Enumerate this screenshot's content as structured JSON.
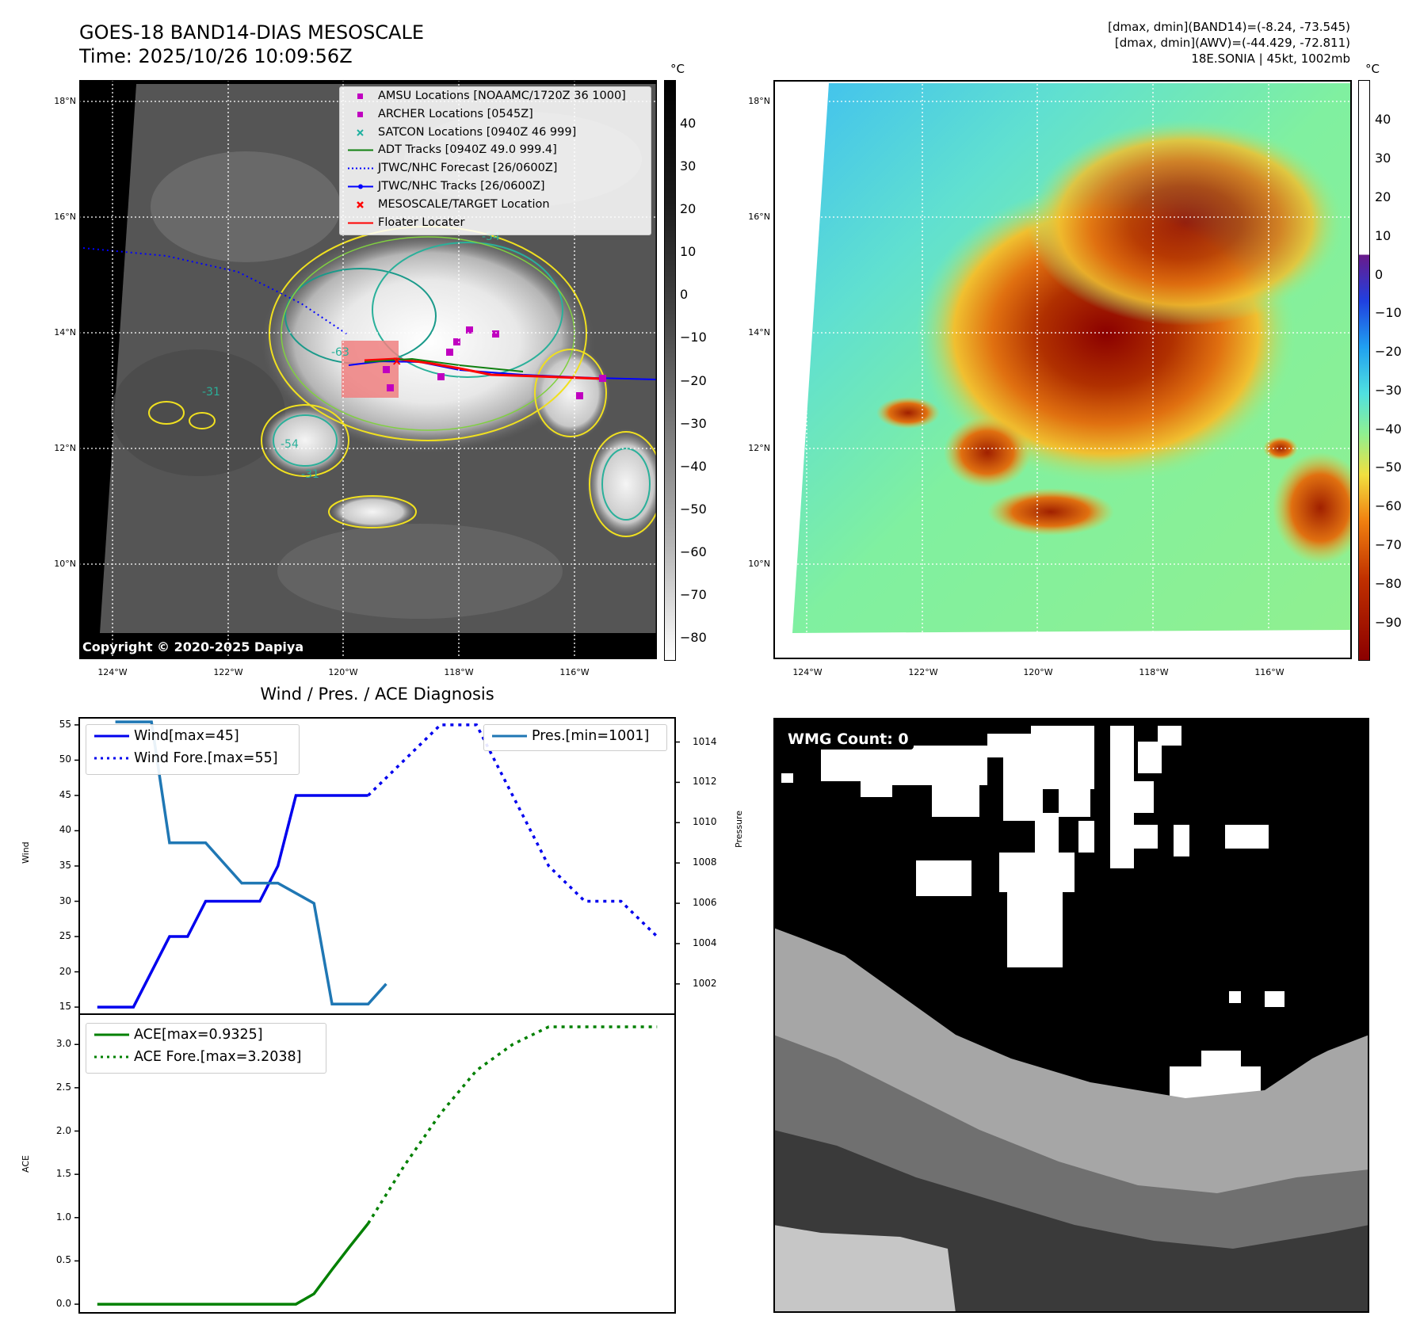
{
  "header": {
    "title_line1": "GOES-18 BAND14-DIAS MESOSCALE",
    "title_line2": "Time: 2025/10/26 10:09:56Z",
    "right_line1": "[dmax, dmin](BAND14)=(-8.24, -73.545)",
    "right_line2": "[dmax, dmin](AWV)=(-44.429, -72.811)",
    "right_line3": "18E.SONIA | 45kt, 1002mb"
  },
  "map_axes": {
    "lat_labels": [
      "18°N",
      "16°N",
      "14°N",
      "12°N",
      "10°N"
    ],
    "lon_labels": [
      "124°W",
      "122°W",
      "120°W",
      "118°W",
      "116°W"
    ]
  },
  "ir_colorbar": {
    "unit": "°C",
    "ticks": [
      "40",
      "30",
      "20",
      "10",
      "0",
      "−10",
      "−20",
      "−30",
      "−40",
      "−50",
      "−60",
      "−70",
      "−80"
    ]
  },
  "wv_colorbar": {
    "unit": "°C",
    "ticks": [
      "40",
      "30",
      "20",
      "10",
      "0",
      "−10",
      "−20",
      "−30",
      "−40",
      "−50",
      "−60",
      "−70",
      "−80",
      "−90"
    ]
  },
  "ir_legend": [
    {
      "label": "AMSU Locations [NOAAMC/1720Z 36 1000]",
      "symbol": "square",
      "color": "#c000c0"
    },
    {
      "label": "ARCHER Locations [0545Z]",
      "symbol": "square",
      "color": "#c000c0"
    },
    {
      "label": "SATCON Locations [0940Z 46 999]",
      "symbol": "x",
      "color": "#20b0a0"
    },
    {
      "label": "ADT Tracks [0940Z 49.0 999.4]",
      "symbol": "line",
      "color": "#108010"
    },
    {
      "label": "JTWC/NHC Forecast [26/0600Z]",
      "symbol": "dotted",
      "color": "#0000ff"
    },
    {
      "label": "JTWC/NHC Tracks [26/0600Z]",
      "symbol": "line-dot",
      "color": "#0000ff"
    },
    {
      "label": "MESOSCALE/TARGET Location",
      "symbol": "x",
      "color": "#ff0000"
    },
    {
      "label": "Floater Locater",
      "symbol": "line",
      "color": "#ff0000"
    }
  ],
  "contour_labels": [
    "-54",
    "-31",
    "-54",
    "-31",
    "-63"
  ],
  "copyright": "Copyright © 2020-2025 Dapiya",
  "diag_title": "Wind / Pres. / ACE Diagnosis",
  "wind_axis": {
    "ylabel": "Wind",
    "ticks": [
      "55",
      "50",
      "45",
      "40",
      "35",
      "30",
      "25",
      "20",
      "15"
    ]
  },
  "pres_axis": {
    "ylabel": "Pressure",
    "ticks": [
      "1014",
      "1012",
      "1010",
      "1008",
      "1006",
      "1004",
      "1002"
    ]
  },
  "ace_axis": {
    "ylabel": "ACE",
    "ticks": [
      "3.0",
      "2.5",
      "2.0",
      "1.5",
      "1.0",
      "0.5",
      "0.0"
    ]
  },
  "wind_legend": [
    "Wind[max=45]",
    "Wind Fore.[max=55]"
  ],
  "pres_legend": [
    "Pres.[min=1001]"
  ],
  "ace_legend": [
    "ACE[max=0.9325]",
    "ACE Fore.[max=3.2038]"
  ],
  "wmg_label": "WMG Count: 0",
  "chart_data": [
    {
      "type": "line",
      "title": "Wind / Pres. / ACE Diagnosis",
      "ylabel": "Wind",
      "ylim": [
        14,
        56
      ],
      "series": [
        {
          "name": "Wind[max=45]",
          "style": "solid",
          "color": "#0000ee",
          "x": [
            0,
            1,
            2,
            3,
            4,
            5,
            6,
            7,
            8,
            9,
            10,
            11,
            12,
            13,
            14,
            15
          ],
          "y": [
            15,
            15,
            15,
            20,
            25,
            25,
            30,
            30,
            30,
            30,
            35,
            45,
            45,
            45,
            45,
            45
          ]
        },
        {
          "name": "Wind Fore.[max=55]",
          "style": "dotted",
          "color": "#0000ee",
          "x": [
            15,
            17,
            19,
            21,
            23,
            25,
            27,
            29,
            31
          ],
          "y": [
            45,
            50,
            55,
            55,
            45,
            35,
            30,
            30,
            25
          ]
        }
      ]
    },
    {
      "type": "line",
      "ylabel": "Pressure",
      "ylim": [
        1000.5,
        1015.2
      ],
      "series": [
        {
          "name": "Pres.[min=1001]",
          "style": "solid",
          "color": "#1f77b4",
          "x": [
            1,
            3,
            4,
            6,
            8,
            10,
            12,
            13,
            14,
            15,
            16
          ],
          "y": [
            1015,
            1015,
            1009,
            1009,
            1007,
            1007,
            1006,
            1001,
            1001,
            1001,
            1002
          ]
        }
      ]
    },
    {
      "type": "line",
      "ylabel": "ACE",
      "ylim": [
        -0.1,
        3.35
      ],
      "series": [
        {
          "name": "ACE[max=0.9325]",
          "style": "solid",
          "color": "#008000",
          "x": [
            0,
            11,
            12,
            13,
            14,
            15
          ],
          "y": [
            0.0,
            0.0,
            0.12,
            0.4,
            0.67,
            0.9325
          ]
        },
        {
          "name": "ACE Fore.[max=3.2038]",
          "style": "dotted",
          "color": "#008000",
          "x": [
            15,
            17,
            19,
            21,
            23,
            25,
            27,
            29,
            31
          ],
          "y": [
            0.9325,
            1.6,
            2.2,
            2.7,
            3.0,
            3.2038,
            3.2038,
            3.2038,
            3.2038
          ]
        }
      ]
    }
  ]
}
